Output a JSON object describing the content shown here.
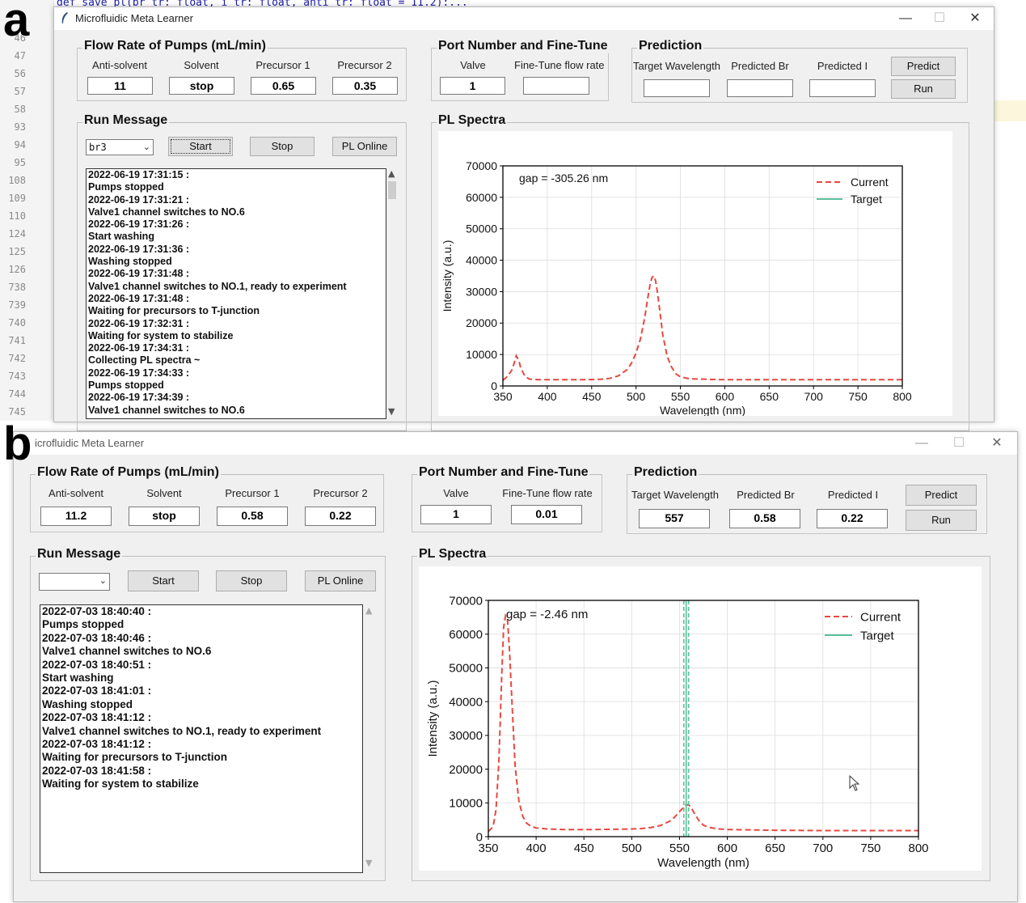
{
  "panels": {
    "a": "a",
    "b": "b"
  },
  "ide": {
    "code_line": "def save_pl(br_tr: float, i_tr: float, anti_tr: float = 11.2):...",
    "line_numbers": [
      "46",
      "47",
      "56",
      "57",
      "58",
      "93",
      "94",
      "95",
      "108",
      "109",
      "110",
      "124",
      "125",
      "126",
      "738",
      "739",
      "740",
      "741",
      "742",
      "743",
      "744",
      "745"
    ]
  },
  "window_a": {
    "title": "Microfluidic Meta Learner",
    "controls": {
      "minimize": "—",
      "maximize": "☐",
      "close": "✕"
    },
    "flow": {
      "title": "Flow Rate of Pumps (mL/min)",
      "labels": [
        "Anti-solvent",
        "Solvent",
        "Precursor 1",
        "Precursor 2"
      ],
      "values": [
        "11",
        "stop",
        "0.65",
        "0.35"
      ]
    },
    "port": {
      "title": "Port Number and Fine-Tune",
      "labels": [
        "Valve",
        "Fine-Tune flow rate"
      ],
      "values": [
        "1",
        ""
      ]
    },
    "prediction": {
      "title": "Prediction",
      "labels": [
        "Target Wavelength",
        "Predicted Br",
        "Predicted I"
      ],
      "values": [
        "",
        "",
        ""
      ],
      "predict_button": "Predict",
      "run_button": "Run"
    },
    "run": {
      "title": "Run Message",
      "combo": "br3",
      "buttons": [
        "Start",
        "Stop",
        "PL Online"
      ],
      "log": [
        "2022-06-19 17:31:15 :",
        "Pumps stopped",
        "2022-06-19 17:31:21 :",
        "Valve1 channel switches to NO.6",
        "2022-06-19 17:31:26 :",
        "Start washing",
        "2022-06-19 17:31:36 :",
        "Washing stopped",
        "2022-06-19 17:31:48 :",
        "Valve1 channel switches to NO.1, ready to experiment",
        "2022-06-19 17:31:48 :",
        "Waiting for precursors to T-junction",
        "2022-06-19 17:32:31 :",
        "Waiting for system to stabilize",
        "2022-06-19 17:34:31 :",
        "Collecting PL spectra ~",
        "2022-06-19 17:34:33 :",
        "Pumps stopped",
        "2022-06-19 17:34:39 :",
        "Valve1 channel switches to NO.6"
      ]
    },
    "spectra_title": "PL Spectra"
  },
  "window_b": {
    "title": "icrofluidic Meta Learner",
    "controls": {
      "minimize": "—",
      "maximize": "☐",
      "close": "✕"
    },
    "flow": {
      "title": "Flow Rate of Pumps (mL/min)",
      "labels": [
        "Anti-solvent",
        "Solvent",
        "Precursor 1",
        "Precursor 2"
      ],
      "values": [
        "11.2",
        "stop",
        "0.58",
        "0.22"
      ]
    },
    "port": {
      "title": "Port Number and Fine-Tune",
      "labels": [
        "Valve",
        "Fine-Tune flow rate"
      ],
      "values": [
        "1",
        "0.01"
      ]
    },
    "prediction": {
      "title": "Prediction",
      "labels": [
        "Target Wavelength",
        "Predicted Br",
        "Predicted I"
      ],
      "values": [
        "557",
        "0.58",
        "0.22"
      ],
      "predict_button": "Predict",
      "run_button": "Run"
    },
    "run": {
      "title": "Run Message",
      "combo": "",
      "buttons": [
        "Start",
        "Stop",
        "PL Online"
      ],
      "log": [
        "2022-07-03 18:40:40 :",
        "Pumps stopped",
        "2022-07-03 18:40:46 :",
        "Valve1 channel switches to NO.6",
        "2022-07-03 18:40:51 :",
        "Start washing",
        "2022-07-03 18:41:01 :",
        "Washing stopped",
        "2022-07-03 18:41:12 :",
        "Valve1 channel switches to NO.1, ready to experiment",
        "2022-07-03 18:41:12 :",
        "Waiting for precursors to T-junction",
        "2022-07-03 18:41:58 :",
        "Waiting for system to stabilize"
      ]
    },
    "spectra_title": "PL Spectra"
  },
  "chart_data": [
    {
      "type": "line",
      "title": "",
      "annotation": "gap = -305.26 nm",
      "xlabel": "Wavelength (nm)",
      "ylabel": "Intensity (a.u.)",
      "xlim": [
        350,
        800
      ],
      "ylim": [
        0,
        70000
      ],
      "xticks": [
        350,
        400,
        450,
        500,
        550,
        600,
        650,
        700,
        750,
        800
      ],
      "yticks": [
        0,
        10000,
        20000,
        30000,
        40000,
        50000,
        60000,
        70000
      ],
      "grid": true,
      "legend": "top-right",
      "colors": {
        "current": "#e8483f",
        "target": "#5cbf9a"
      },
      "series": [
        {
          "name": "Current",
          "style": "dashed",
          "x": [
            350,
            355,
            360,
            363,
            365,
            368,
            370,
            375,
            380,
            390,
            400,
            420,
            440,
            460,
            470,
            480,
            490,
            495,
            500,
            505,
            510,
            513,
            516,
            518,
            520,
            522,
            524,
            527,
            530,
            535,
            540,
            545,
            550,
            560,
            580,
            600,
            650,
            700,
            750,
            800
          ],
          "y": [
            1800,
            3000,
            5000,
            7500,
            9600,
            8000,
            5800,
            3000,
            2200,
            2000,
            2000,
            2000,
            2000,
            2100,
            2400,
            3200,
            5200,
            7300,
            10500,
            15000,
            22000,
            27500,
            32500,
            34500,
            35000,
            33500,
            30000,
            23500,
            16500,
            9500,
            6000,
            3800,
            2900,
            2300,
            2100,
            2000,
            2000,
            2000,
            2000,
            2000
          ]
        },
        {
          "name": "Target",
          "style": "solid",
          "x": [],
          "y": []
        }
      ]
    },
    {
      "type": "line",
      "title": "",
      "annotation": "gap = -2.46 nm",
      "xlabel": "Wavelength (nm)",
      "ylabel": "Intensity (a.u.)",
      "xlim": [
        350,
        800
      ],
      "ylim": [
        0,
        70000
      ],
      "xticks": [
        350,
        400,
        450,
        500,
        550,
        600,
        650,
        700,
        750,
        800
      ],
      "yticks": [
        0,
        10000,
        20000,
        30000,
        40000,
        50000,
        60000,
        70000
      ],
      "grid": true,
      "legend": "top-right",
      "colors": {
        "current": "#e8483f",
        "target": "#5cbf9a"
      },
      "series": [
        {
          "name": "Current",
          "style": "dashed",
          "x": [
            350,
            355,
            358,
            361,
            364,
            366,
            368,
            370,
            372,
            375,
            378,
            382,
            386,
            390,
            395,
            400,
            410,
            430,
            460,
            490,
            510,
            520,
            530,
            540,
            545,
            550,
            555,
            557,
            560,
            563,
            566,
            570,
            575,
            580,
            590,
            600,
            650,
            700,
            750,
            800
          ],
          "y": [
            1500,
            3000,
            8000,
            22000,
            48000,
            62000,
            65500,
            64500,
            56000,
            38000,
            21000,
            10500,
            6000,
            4000,
            3000,
            2600,
            2300,
            2100,
            2100,
            2200,
            2400,
            2700,
            3300,
            4600,
            5800,
            7400,
            8900,
            9500,
            9300,
            8200,
            6700,
            4900,
            3400,
            2800,
            2300,
            2100,
            1900,
            1800,
            1800,
            1800
          ]
        },
        {
          "name": "Target",
          "style": "solid",
          "vlines": [
            554.5,
            557,
            559.5
          ]
        }
      ]
    }
  ]
}
